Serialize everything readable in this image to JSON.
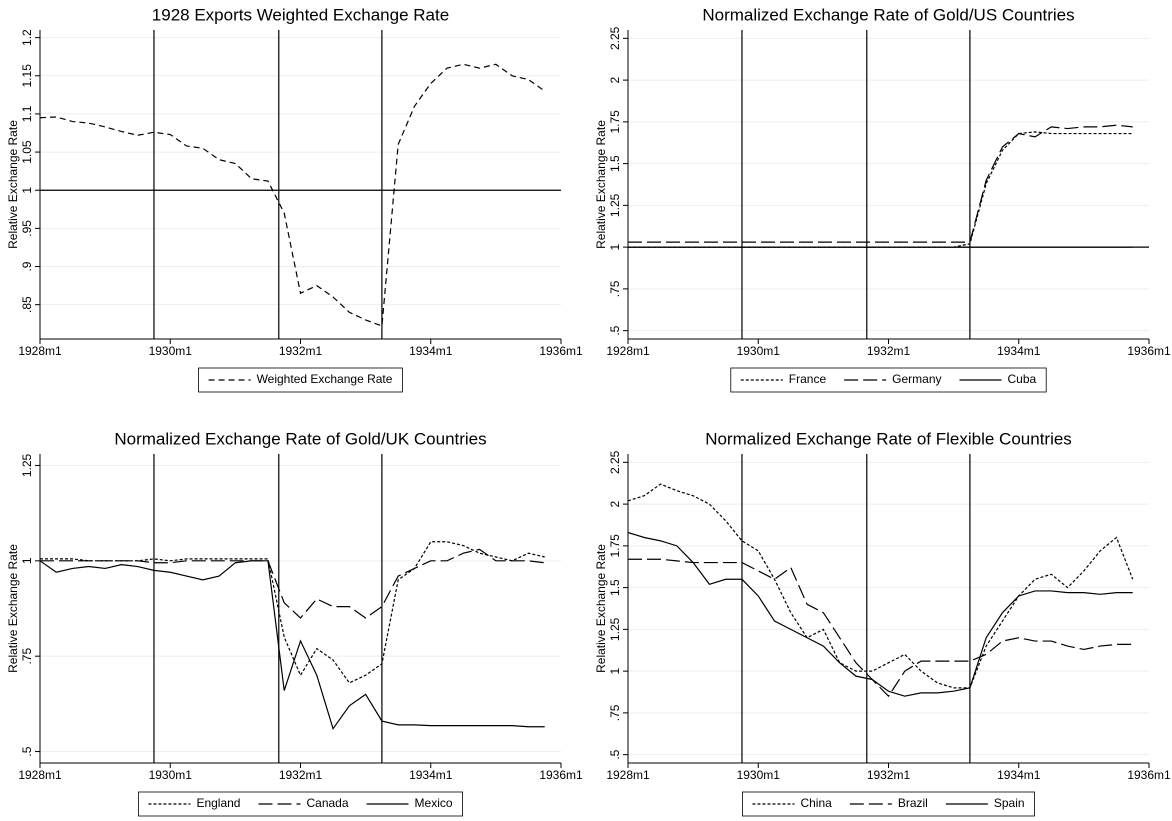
{
  "chart_data": [
    {
      "type": "line",
      "title": "1928 Exports Weighted Exchange Rate",
      "ylabel": "Relative Exchange Rate",
      "x": [
        -384,
        -381,
        -378,
        -375,
        -372,
        -369,
        -366,
        -363,
        -360,
        -357,
        -354,
        -351,
        -348,
        -345,
        -342,
        -339,
        -336,
        -333,
        -330,
        -327,
        -324,
        -321,
        -318,
        -315,
        -312,
        -309,
        -306,
        -303,
        -300,
        -297,
        -294,
        -291
      ],
      "series": [
        {
          "name": "Weighted Exchange Rate",
          "color": "#000000",
          "line_style": "dashed",
          "values": [
            1.095,
            1.096,
            1.09,
            1.088,
            1.083,
            1.077,
            1.072,
            1.076,
            1.073,
            1.058,
            1.055,
            1.04,
            1.035,
            1.015,
            1.012,
            0.97,
            0.865,
            0.875,
            0.86,
            0.84,
            0.83,
            0.822,
            1.06,
            1.11,
            1.14,
            1.16,
            1.165,
            1.16,
            1.165,
            1.15,
            1.145,
            1.13
          ]
        }
      ],
      "xlim": [
        -384,
        -288
      ],
      "xticks": [
        {
          "value": -384,
          "label": "1928m1"
        },
        {
          "value": -360,
          "label": "1930m1"
        },
        {
          "value": -336,
          "label": "1932m1"
        },
        {
          "value": -312,
          "label": "1934m1"
        },
        {
          "value": -288,
          "label": "1936m1"
        }
      ],
      "ylim": [
        0.805,
        1.21
      ],
      "yticks": [
        {
          "value": 0.85,
          "label": ".85"
        },
        {
          "value": 0.9,
          "label": ".9"
        },
        {
          "value": 0.95,
          "label": ".95"
        },
        1,
        1.05,
        1.1,
        1.15,
        1.2
      ],
      "vlines": [
        -363,
        -340,
        -321
      ],
      "hline": 1,
      "grid": true,
      "legend": "bottom"
    },
    {
      "type": "line",
      "title": "Normalized Exchange Rate of Gold/US Countries",
      "ylabel": "Relative Exchange Rate",
      "x": [
        -384,
        -381,
        -378,
        -375,
        -372,
        -369,
        -366,
        -363,
        -360,
        -357,
        -354,
        -351,
        -348,
        -345,
        -342,
        -339,
        -336,
        -333,
        -330,
        -327,
        -324,
        -321,
        -318,
        -315,
        -312,
        -309,
        -306,
        -303,
        -300,
        -297,
        -294,
        -291
      ],
      "series": [
        {
          "name": "France",
          "color": "#000000",
          "line_style": "dotted",
          "values": [
            1.0,
            1.0,
            1.0,
            1.0,
            1.0,
            1.0,
            1.0,
            1.0,
            1.0,
            1.0,
            1.0,
            1.0,
            1.0,
            1.0,
            1.0,
            1.0,
            1.0,
            1.0,
            1.0,
            1.0,
            1.0,
            1.02,
            1.38,
            1.58,
            1.68,
            1.69,
            1.68,
            1.68,
            1.68,
            1.68,
            1.68,
            1.68
          ]
        },
        {
          "name": "Germany",
          "color": "#000000",
          "line_style": "longdash",
          "values": [
            1.03,
            1.03,
            1.03,
            1.03,
            1.03,
            1.03,
            1.03,
            1.03,
            1.03,
            1.03,
            1.03,
            1.03,
            1.03,
            1.03,
            1.03,
            1.03,
            1.03,
            1.03,
            1.03,
            1.03,
            1.03,
            1.03,
            1.4,
            1.6,
            1.68,
            1.66,
            1.72,
            1.71,
            1.72,
            1.72,
            1.73,
            1.72
          ]
        },
        {
          "name": "Cuba",
          "color": "#000000",
          "line_style": "solid",
          "values": [
            1.0,
            1.0,
            1.0,
            1.0,
            1.0,
            1.0,
            1.0,
            1.0,
            1.0,
            1.0,
            1.0,
            1.0,
            1.0,
            1.0,
            1.0,
            1.0,
            1.0,
            1.0,
            1.0,
            1.0,
            1.0,
            1.0,
            1.0,
            1.0,
            1.0,
            1.0,
            1.0,
            1.0,
            1.0,
            1.0,
            1.0,
            1.0
          ]
        }
      ],
      "xlim": [
        -384,
        -288
      ],
      "xticks": [
        {
          "value": -384,
          "label": "1928m1"
        },
        {
          "value": -360,
          "label": "1930m1"
        },
        {
          "value": -336,
          "label": "1932m1"
        },
        {
          "value": -312,
          "label": "1934m1"
        },
        {
          "value": -288,
          "label": "1936m1"
        }
      ],
      "ylim": [
        0.45,
        2.3
      ],
      "yticks": [
        {
          "value": 0.5,
          "label": ".5"
        },
        {
          "value": 0.75,
          "label": ".75"
        },
        1,
        1.25,
        1.5,
        1.75,
        2,
        2.25
      ],
      "vlines": [
        -363,
        -340,
        -321
      ],
      "hline": 1,
      "grid": true,
      "legend": "bottom"
    },
    {
      "type": "line",
      "title": "Normalized Exchange Rate of Gold/UK Countries",
      "ylabel": "Relative Exchange Rate",
      "x": [
        -384,
        -381,
        -378,
        -375,
        -372,
        -369,
        -366,
        -363,
        -360,
        -357,
        -354,
        -351,
        -348,
        -345,
        -342,
        -339,
        -336,
        -333,
        -330,
        -327,
        -324,
        -321,
        -318,
        -315,
        -312,
        -309,
        -306,
        -303,
        -300,
        -297,
        -294,
        -291
      ],
      "series": [
        {
          "name": "England",
          "color": "#000000",
          "line_style": "dotted",
          "values": [
            1.005,
            1.005,
            1.005,
            1.0,
            1.0,
            1.0,
            1.0,
            1.005,
            1.0,
            1.005,
            1.005,
            1.005,
            1.005,
            1.005,
            1.005,
            0.8,
            0.7,
            0.77,
            0.74,
            0.68,
            0.7,
            0.73,
            0.95,
            0.98,
            1.05,
            1.05,
            1.04,
            1.02,
            1.01,
            1.0,
            1.02,
            1.01
          ]
        },
        {
          "name": "Canada",
          "color": "#000000",
          "line_style": "longdash",
          "values": [
            1.0,
            1.0,
            1.0,
            1.0,
            1.0,
            1.0,
            1.0,
            0.995,
            0.995,
            1.0,
            1.0,
            1.0,
            1.0,
            1.0,
            1.0,
            0.89,
            0.85,
            0.9,
            0.88,
            0.88,
            0.85,
            0.88,
            0.96,
            0.98,
            1.0,
            1.0,
            1.02,
            1.03,
            1.0,
            1.0,
            1.0,
            0.995
          ]
        },
        {
          "name": "Mexico",
          "color": "#000000",
          "line_style": "solid",
          "values": [
            1.0,
            0.97,
            0.98,
            0.985,
            0.98,
            0.99,
            0.985,
            0.975,
            0.97,
            0.96,
            0.95,
            0.96,
            0.995,
            1.0,
            1.0,
            0.66,
            0.79,
            0.7,
            0.56,
            0.62,
            0.65,
            0.58,
            0.57,
            0.57,
            0.568,
            0.568,
            0.568,
            0.568,
            0.568,
            0.568,
            0.565,
            0.565
          ]
        }
      ],
      "xlim": [
        -384,
        -288
      ],
      "xticks": [
        {
          "value": -384,
          "label": "1928m1"
        },
        {
          "value": -360,
          "label": "1930m1"
        },
        {
          "value": -336,
          "label": "1932m1"
        },
        {
          "value": -312,
          "label": "1934m1"
        },
        {
          "value": -288,
          "label": "1936m1"
        }
      ],
      "ylim": [
        0.47,
        1.28
      ],
      "yticks": [
        {
          "value": 0.5,
          "label": ".5"
        },
        {
          "value": 0.75,
          "label": ".75"
        },
        1,
        1.25
      ],
      "vlines": [
        -363,
        -340,
        -321
      ],
      "grid": true,
      "legend": "bottom"
    },
    {
      "type": "line",
      "title": "Normalized Exchange Rate of Flexible Countries",
      "ylabel": "Relative Exchange Rate",
      "x": [
        -384,
        -381,
        -378,
        -375,
        -372,
        -369,
        -366,
        -363,
        -360,
        -357,
        -354,
        -351,
        -348,
        -345,
        -342,
        -339,
        -336,
        -333,
        -330,
        -327,
        -324,
        -321,
        -318,
        -315,
        -312,
        -309,
        -306,
        -303,
        -300,
        -297,
        -294,
        -291
      ],
      "series": [
        {
          "name": "China",
          "color": "#000000",
          "line_style": "dotted",
          "values": [
            2.02,
            2.05,
            2.12,
            2.08,
            2.05,
            2.0,
            1.9,
            1.78,
            1.72,
            1.55,
            1.35,
            1.2,
            1.25,
            1.05,
            1.0,
            1.0,
            1.05,
            1.1,
            1.0,
            0.93,
            0.9,
            0.9,
            1.15,
            1.3,
            1.45,
            1.55,
            1.58,
            1.5,
            1.6,
            1.72,
            1.8,
            1.55
          ]
        },
        {
          "name": "Brazil",
          "color": "#000000",
          "line_style": "longdash",
          "values": [
            1.67,
            1.67,
            1.67,
            1.66,
            1.65,
            1.65,
            1.65,
            1.65,
            1.6,
            1.55,
            1.62,
            1.4,
            1.35,
            1.2,
            1.05,
            0.95,
            0.85,
            1.0,
            1.06,
            1.06,
            1.06,
            1.06,
            1.1,
            1.18,
            1.2,
            1.18,
            1.18,
            1.15,
            1.13,
            1.15,
            1.16,
            1.16
          ]
        },
        {
          "name": "Spain",
          "color": "#000000",
          "line_style": "solid",
          "values": [
            1.83,
            1.8,
            1.78,
            1.75,
            1.65,
            1.52,
            1.55,
            1.55,
            1.45,
            1.3,
            1.25,
            1.2,
            1.15,
            1.05,
            0.97,
            0.95,
            0.88,
            0.85,
            0.87,
            0.87,
            0.88,
            0.9,
            1.2,
            1.35,
            1.45,
            1.48,
            1.48,
            1.47,
            1.47,
            1.46,
            1.47,
            1.47
          ]
        }
      ],
      "xlim": [
        -384,
        -288
      ],
      "xticks": [
        {
          "value": -384,
          "label": "1928m1"
        },
        {
          "value": -360,
          "label": "1930m1"
        },
        {
          "value": -336,
          "label": "1932m1"
        },
        {
          "value": -312,
          "label": "1934m1"
        },
        {
          "value": -288,
          "label": "1936m1"
        }
      ],
      "ylim": [
        0.45,
        2.3
      ],
      "yticks": [
        {
          "value": 0.5,
          "label": ".5"
        },
        {
          "value": 0.75,
          "label": ".75"
        },
        1,
        1.25,
        1.5,
        1.75,
        2,
        2.25
      ],
      "vlines": [
        -363,
        -340,
        -321
      ],
      "grid": true,
      "legend": "bottom"
    }
  ]
}
